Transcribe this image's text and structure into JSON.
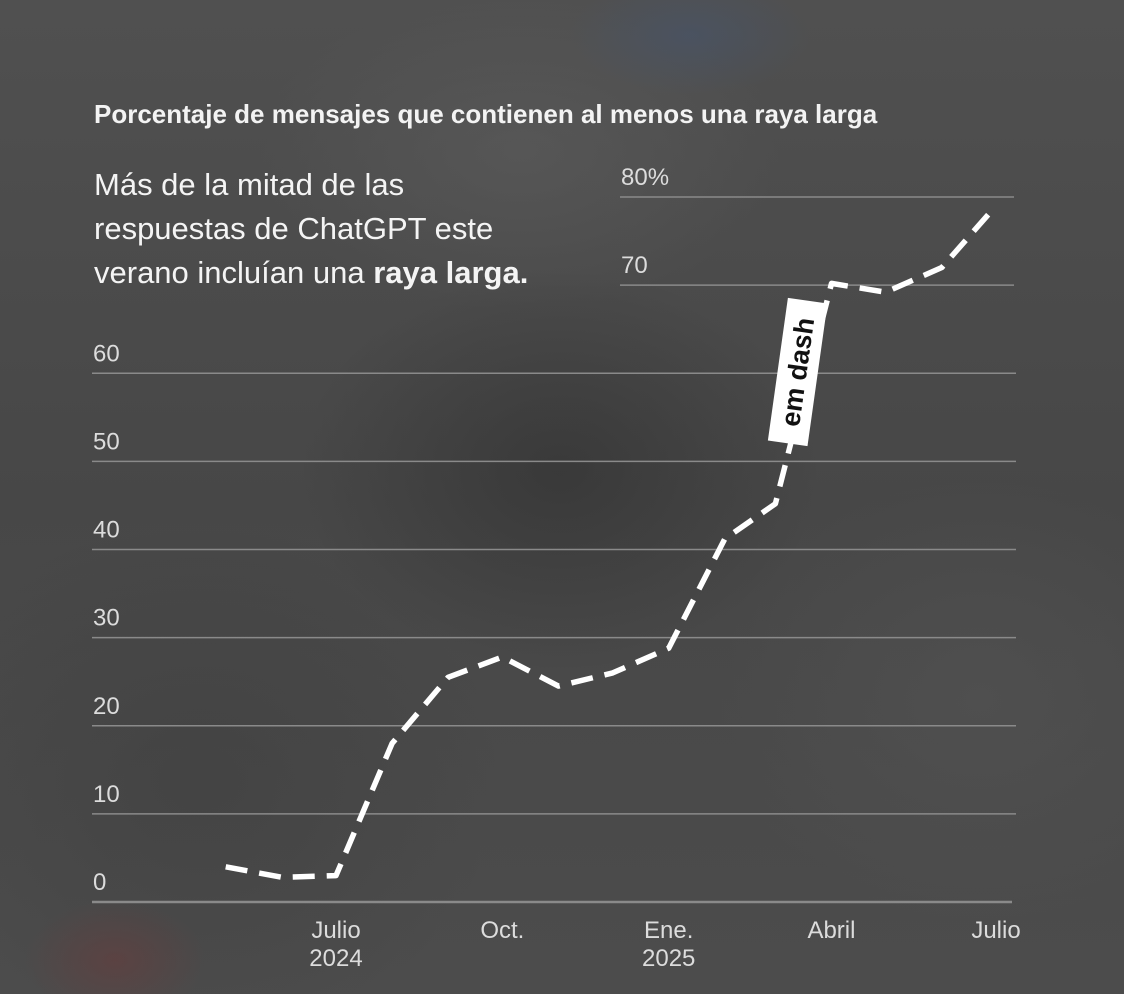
{
  "chart_data": {
    "type": "line",
    "title": "Porcentaje de mensajes que contienen al menos una raya larga",
    "subtitle": {
      "plain": "Más de la mitad de las respuestas de ChatGPT este verano incluían una ",
      "bold": "raya larga."
    },
    "xlabel": "",
    "ylabel": "",
    "ylim": [
      0,
      80
    ],
    "y_ticks": [
      0,
      10,
      20,
      30,
      40,
      50,
      60,
      70,
      80
    ],
    "y_tick_labels": [
      "0",
      "10",
      "20",
      "30",
      "40",
      "50",
      "60",
      "70",
      "80%"
    ],
    "x_ticks": [
      {
        "date": "2024-07-01",
        "line1": "Julio",
        "line2": "2024"
      },
      {
        "date": "2024-10-01",
        "line1": "Oct.",
        "line2": ""
      },
      {
        "date": "2025-01-01",
        "line1": "Ene.",
        "line2": "2025"
      },
      {
        "date": "2025-04-01",
        "line1": "Abril",
        "line2": ""
      },
      {
        "date": "2025-07-01",
        "line1": "Julio",
        "line2": ""
      }
    ],
    "x": [
      "2024-05-01",
      "2024-06-01",
      "2024-07-01",
      "2024-08-01",
      "2024-09-01",
      "2024-10-01",
      "2024-11-01",
      "2024-12-01",
      "2025-01-01",
      "2025-02-01",
      "2025-03-01",
      "2025-04-01",
      "2025-05-01",
      "2025-06-01",
      "2025-07-01"
    ],
    "values": [
      4,
      2.8,
      3,
      18,
      25.5,
      27.8,
      24.5,
      26,
      28.8,
      41.2,
      45.2,
      70.2,
      69.2,
      72,
      79
    ],
    "line_style": "dashed",
    "grid": true,
    "annotations": [
      {
        "text": "em dash",
        "near_date": "2025-03-15"
      }
    ],
    "colors": {
      "line": "#ffffff",
      "grid": "#8a8a8a",
      "axis": "#8a8a8a",
      "tick_text": "#dcdcdc",
      "label_box": "#ffffff",
      "label_text": "#111111"
    }
  }
}
